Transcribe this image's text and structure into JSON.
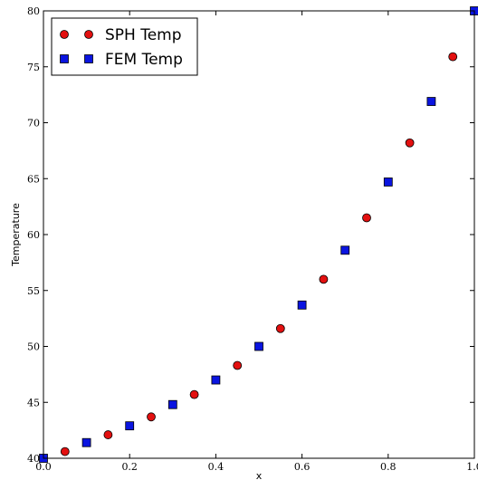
{
  "chart_data": {
    "type": "scatter",
    "title": "",
    "xlabel": "x",
    "ylabel": "Temperature",
    "xlim": [
      0.0,
      1.0
    ],
    "ylim": [
      40,
      80
    ],
    "xticks": [
      "0.0",
      "0.2",
      "0.4",
      "0.6",
      "0.8",
      "1.0"
    ],
    "yticks": [
      "40",
      "45",
      "50",
      "55",
      "60",
      "65",
      "70",
      "75",
      "80"
    ],
    "grid": false,
    "legend_position": "top-left",
    "series": [
      {
        "name": "SPH Temp",
        "marker": "circle",
        "color": "#e31010",
        "x": [
          0.05,
          0.15,
          0.25,
          0.35,
          0.45,
          0.55,
          0.65,
          0.75,
          0.85,
          0.95
        ],
        "y": [
          40.6,
          42.1,
          43.7,
          45.7,
          48.3,
          51.6,
          56.0,
          61.5,
          68.2,
          75.9
        ]
      },
      {
        "name": "FEM Temp",
        "marker": "square",
        "color": "#0a14e0",
        "x": [
          0.0,
          0.1,
          0.2,
          0.3,
          0.4,
          0.5,
          0.6,
          0.7,
          0.8,
          0.9,
          1.0
        ],
        "y": [
          40.0,
          41.4,
          42.9,
          44.8,
          47.0,
          50.0,
          53.7,
          58.6,
          64.7,
          71.9,
          80.0
        ]
      }
    ]
  }
}
